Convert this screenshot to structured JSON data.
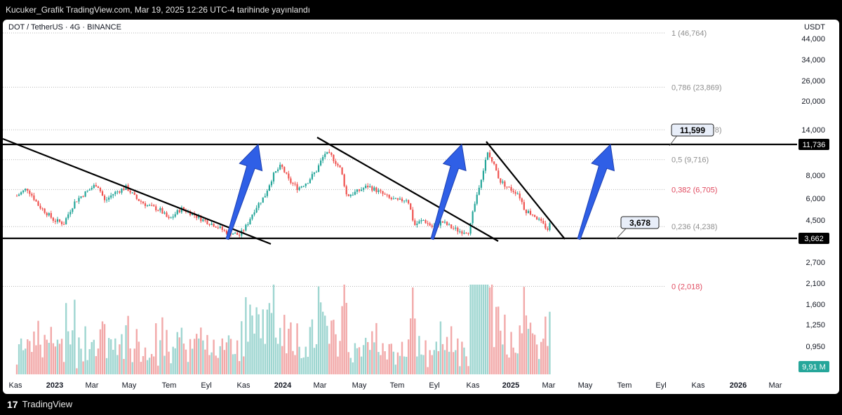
{
  "header": {
    "caption": "Kucuker_Grafik TradingView.com, Mar 19, 2025 12:26 UTC-4 tarihinde yayınlandı"
  },
  "footer": {
    "brand": "TradingView",
    "logo_glyph": "17"
  },
  "colors": {
    "up": "#26a69a",
    "down": "#ef5350",
    "arrow": "#2f5fe6",
    "fib_neutral": "#8f8f8f",
    "fib_red": "#e04a5f",
    "grid": "#b5b5b5"
  },
  "chart_data": {
    "type": "candlestick",
    "symbol_label": "DOT / TetherUS · 4G · BINANCE",
    "currency": "USDT",
    "y_axis_ticks": [
      "44,000",
      "34,000",
      "26,000",
      "20,000",
      "14,000",
      "8,000",
      "6,000",
      "4,500",
      "2,700",
      "2,100",
      "1,600",
      "1,250",
      "0,950"
    ],
    "x_axis_ticks": [
      {
        "label": "Kas",
        "bold": false
      },
      {
        "label": "2023",
        "bold": true
      },
      {
        "label": "Mar",
        "bold": false
      },
      {
        "label": "May",
        "bold": false
      },
      {
        "label": "Tem",
        "bold": false
      },
      {
        "label": "Eyl",
        "bold": false
      },
      {
        "label": "Kas",
        "bold": false
      },
      {
        "label": "2024",
        "bold": true
      },
      {
        "label": "Mar",
        "bold": false
      },
      {
        "label": "May",
        "bold": false
      },
      {
        "label": "Tem",
        "bold": false
      },
      {
        "label": "Eyl",
        "bold": false
      },
      {
        "label": "Kas",
        "bold": false
      },
      {
        "label": "2025",
        "bold": true
      },
      {
        "label": "Mar",
        "bold": false
      },
      {
        "label": "May",
        "bold": false
      },
      {
        "label": "Tem",
        "bold": false
      },
      {
        "label": "Eyl",
        "bold": false
      },
      {
        "label": "Kas",
        "bold": false
      },
      {
        "label": "2026",
        "bold": true
      },
      {
        "label": "Mar",
        "bold": false
      }
    ],
    "fib_levels": [
      {
        "label": "1 (46,764)",
        "value": 46.764,
        "color": "neutral"
      },
      {
        "label": "0,786 (23,869)",
        "value": 23.869,
        "color": "neutral"
      },
      {
        "label": "0,618 (14,078)",
        "value": 14.078,
        "color": "neutral"
      },
      {
        "label": "0,5 (9,716)",
        "value": 9.716,
        "color": "neutral"
      },
      {
        "label": "0,382 (6,705)",
        "value": 6.705,
        "color": "red"
      },
      {
        "label": "0,236 (4,238)",
        "value": 4.238,
        "color": "neutral"
      },
      {
        "label": "0 (2,018)",
        "value": 2.018,
        "color": "red"
      }
    ],
    "horizontal_levels": [
      {
        "label": "11,736",
        "value": 11.736
      },
      {
        "label": "3,662",
        "value": 3.662
      }
    ],
    "callouts": [
      {
        "label": "11,599",
        "value": 11.599
      },
      {
        "label": "3,678",
        "value": 3.678
      }
    ],
    "volume_label": "9,91 M",
    "price_path": [
      [
        "2022-10-15",
        6.2
      ],
      [
        "2022-11-01",
        6.8
      ],
      [
        "2022-11-20",
        5.5
      ],
      [
        "2022-12-15",
        4.6
      ],
      [
        "2023-01-01",
        4.4
      ],
      [
        "2023-01-20",
        5.8
      ],
      [
        "2023-02-10",
        6.6
      ],
      [
        "2023-02-25",
        7.2
      ],
      [
        "2023-03-10",
        5.8
      ],
      [
        "2023-03-25",
        6.4
      ],
      [
        "2023-04-15",
        6.9
      ],
      [
        "2023-05-01",
        6.0
      ],
      [
        "2023-05-20",
        5.5
      ],
      [
        "2023-06-10",
        5.2
      ],
      [
        "2023-06-25",
        4.6
      ],
      [
        "2023-07-15",
        5.3
      ],
      [
        "2023-08-01",
        5.0
      ],
      [
        "2023-08-20",
        4.6
      ],
      [
        "2023-09-10",
        4.3
      ],
      [
        "2023-09-25",
        4.0
      ],
      [
        "2023-10-10",
        3.9
      ],
      [
        "2023-10-20",
        3.8
      ],
      [
        "2023-11-01",
        4.3
      ],
      [
        "2023-11-15",
        5.3
      ],
      [
        "2023-12-01",
        6.2
      ],
      [
        "2023-12-15",
        8.0
      ],
      [
        "2023-12-28",
        9.0
      ],
      [
        "2024-01-10",
        7.5
      ],
      [
        "2024-01-25",
        6.8
      ],
      [
        "2024-02-10",
        7.4
      ],
      [
        "2024-02-25",
        8.5
      ],
      [
        "2024-03-10",
        10.5
      ],
      [
        "2024-03-20",
        10.2
      ],
      [
        "2024-04-05",
        8.6
      ],
      [
        "2024-04-15",
        6.2
      ],
      [
        "2024-05-01",
        6.5
      ],
      [
        "2024-05-20",
        7.0
      ],
      [
        "2024-06-05",
        6.6
      ],
      [
        "2024-06-25",
        6.0
      ],
      [
        "2024-07-10",
        5.8
      ],
      [
        "2024-07-25",
        6.0
      ],
      [
        "2024-08-05",
        4.3
      ],
      [
        "2024-08-20",
        4.6
      ],
      [
        "2024-09-05",
        4.2
      ],
      [
        "2024-09-20",
        4.5
      ],
      [
        "2024-10-05",
        4.2
      ],
      [
        "2024-10-20",
        4.0
      ],
      [
        "2024-11-05",
        4.0
      ],
      [
        "2024-11-15",
        5.8
      ],
      [
        "2024-11-28",
        8.5
      ],
      [
        "2024-12-05",
        10.5
      ],
      [
        "2024-12-15",
        9.2
      ],
      [
        "2024-12-25",
        7.5
      ],
      [
        "2025-01-10",
        6.8
      ],
      [
        "2025-01-25",
        6.4
      ],
      [
        "2025-02-05",
        5.2
      ],
      [
        "2025-02-20",
        4.9
      ],
      [
        "2025-03-05",
        4.4
      ],
      [
        "2025-03-15",
        4.1
      ],
      [
        "2025-03-19",
        4.4
      ]
    ]
  }
}
